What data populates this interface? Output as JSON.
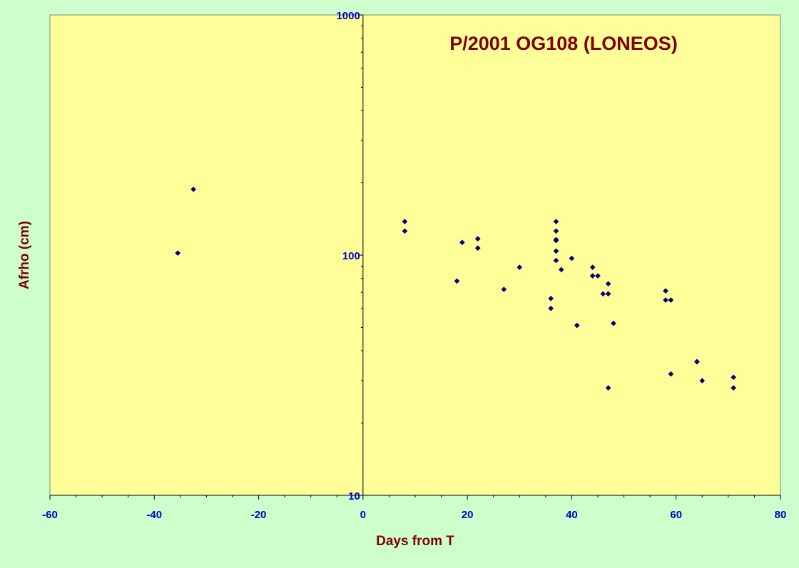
{
  "chart_data": {
    "type": "scatter",
    "title": "P/2001 OG108 (LONEOS)",
    "xlabel": "Days from T",
    "ylabel": "Afrho (cm)",
    "xlim": [
      -60,
      80
    ],
    "ylim": [
      10,
      1000
    ],
    "yscale": "log",
    "xticks": [
      "-60",
      "-40",
      "-20",
      "0",
      "20",
      "40",
      "60",
      "80"
    ],
    "yticks": [
      "10",
      "100",
      "1000"
    ],
    "grid": false,
    "legend": "none",
    "series": [
      {
        "points": [
          [
            -35.5,
            102
          ],
          [
            -32.5,
            188
          ],
          [
            8,
            138
          ],
          [
            8,
            126
          ],
          [
            18,
            78
          ],
          [
            19,
            113
          ],
          [
            22,
            117
          ],
          [
            22,
            107
          ],
          [
            27,
            72
          ],
          [
            30,
            89
          ],
          [
            36,
            66
          ],
          [
            36,
            60
          ],
          [
            37,
            138
          ],
          [
            37,
            126
          ],
          [
            37,
            116
          ],
          [
            37,
            115
          ],
          [
            37,
            104
          ],
          [
            37,
            95
          ],
          [
            38,
            87
          ],
          [
            40,
            97
          ],
          [
            41,
            51
          ],
          [
            44,
            89
          ],
          [
            44,
            82
          ],
          [
            45,
            82
          ],
          [
            46,
            69
          ],
          [
            47,
            76
          ],
          [
            47,
            69
          ],
          [
            47,
            28
          ],
          [
            48,
            52
          ],
          [
            58,
            71
          ],
          [
            58,
            65
          ],
          [
            59,
            65
          ],
          [
            59,
            32
          ],
          [
            64,
            36
          ],
          [
            64,
            36
          ],
          [
            65,
            30
          ],
          [
            71,
            31
          ],
          [
            71,
            28
          ]
        ]
      }
    ]
  },
  "colors": {
    "page_background": "#ccffcc",
    "plot_background": "#ffff99",
    "axis_line": "#000000",
    "tick_label": "#0000cc",
    "axis_title": "#800000",
    "chart_title": "#800000",
    "marker": "#000080"
  }
}
